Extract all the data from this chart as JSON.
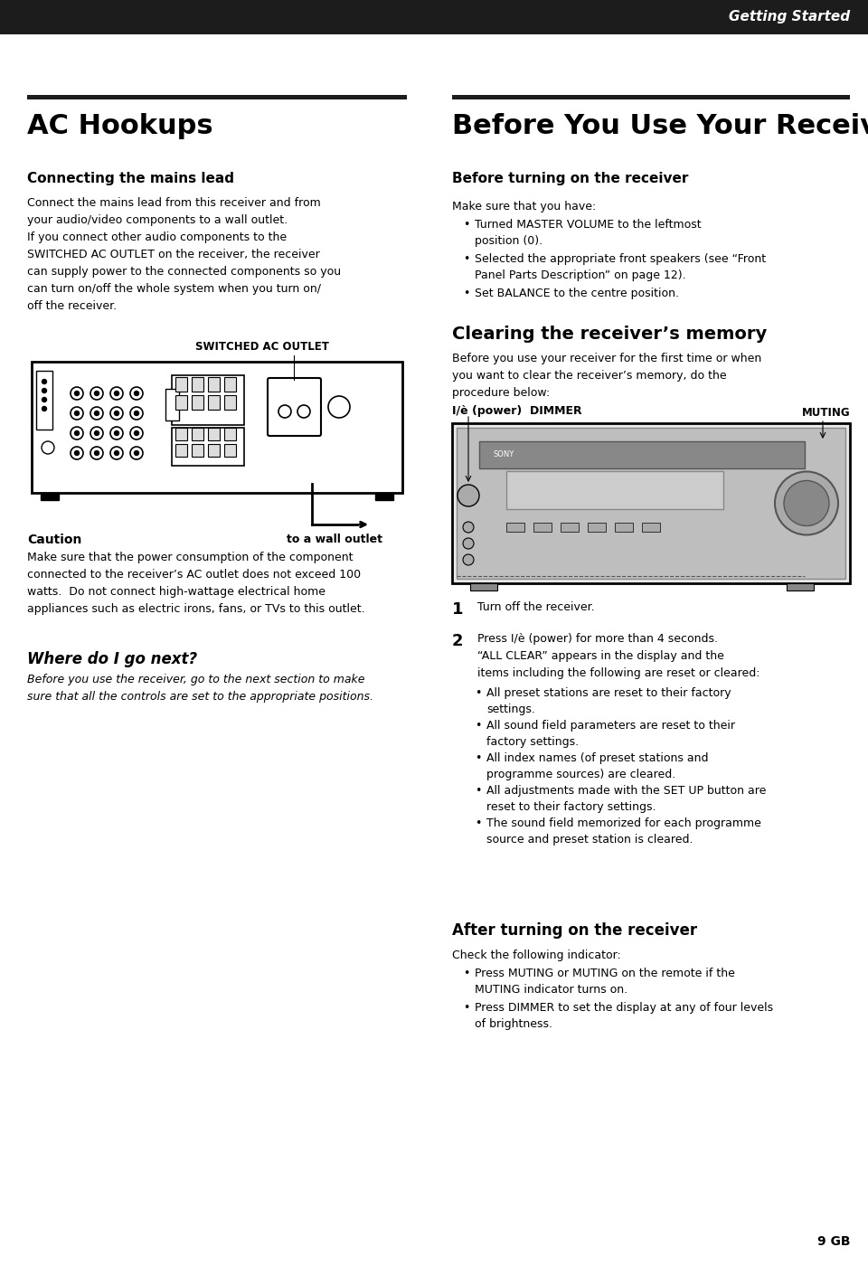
{
  "page_bg": "#ffffff",
  "header_bg": "#1c1c1c",
  "header_text": "Getting Started",
  "header_text_color": "#ffffff",
  "divider_color": "#1c1c1c",
  "section_title_left": "AC Hookups",
  "section_title_right": "Before You Use Your Receiver",
  "subsection1_left": "Connecting the mains lead",
  "subsection1_right": "Before turning on the receiver",
  "body_left1": "Connect the mains lead from this receiver and from\nyour audio/video components to a wall outlet.\nIf you connect other audio components to the\nSWITCHED AC OUTLET on the receiver, the receiver\ncan supply power to the connected components so you\ncan turn on/off the whole system when you turn on/\noff the receiver.",
  "switched_ac_label": "SWITCHED AC OUTLET",
  "wall_outlet_label": "to a wall outlet",
  "caution_title": "Caution",
  "caution_body": "Make sure that the power consumption of the component\nconnected to the receiver’s AC outlet does not exceed 100\nwatts.  Do not connect high-wattage electrical home\nappliances such as electric irons, fans, or TVs to this outlet.",
  "where_next_title": "Where do I go next?",
  "where_next_body": "Before you use the receiver, go to the next section to make\nsure that all the controls are set to the appropriate positions.",
  "before_turning_intro": "Make sure that you have:",
  "before_turning_bullets": [
    "Turned MASTER VOLUME to the leftmost\nposition (0).",
    "Selected the appropriate front speakers (see “Front\nPanel Parts Description” on page 12).",
    "Set BALANCE to the centre position."
  ],
  "clearing_title": "Clearing the receiver’s memory",
  "clearing_body": "Before you use your receiver for the first time or when\nyou want to clear the receiver’s memory, do the\nprocedure below:",
  "power_label": "I/è (power)  DIMMER",
  "muting_label": "MUTING",
  "step1_num": "1",
  "step1_text": "Turn off the receiver.",
  "step2_num": "2",
  "step2_text": "Press I/è (power) for more than 4 seconds.\n“ALL CLEAR” appears in the display and the\nitems including the following are reset or cleared:",
  "step2_bullets": [
    "All preset stations are reset to their factory\nsettings.",
    "All sound field parameters are reset to their\nfactory settings.",
    "All index names (of preset stations and\nprogramme sources) are cleared.",
    "All adjustments made with the SET UP button are\nreset to their factory settings.",
    "The sound field memorized for each programme\nsource and preset station is cleared."
  ],
  "after_title": "After turning on the receiver",
  "after_intro": "Check the following indicator:",
  "after_bullets": [
    "Press MUTING or MUTING on the remote if the\nMUTING indicator turns on.",
    "Press DIMMER to set the display at any of four levels\nof brightness."
  ],
  "page_num": "9 GB",
  "text_color": "#000000"
}
